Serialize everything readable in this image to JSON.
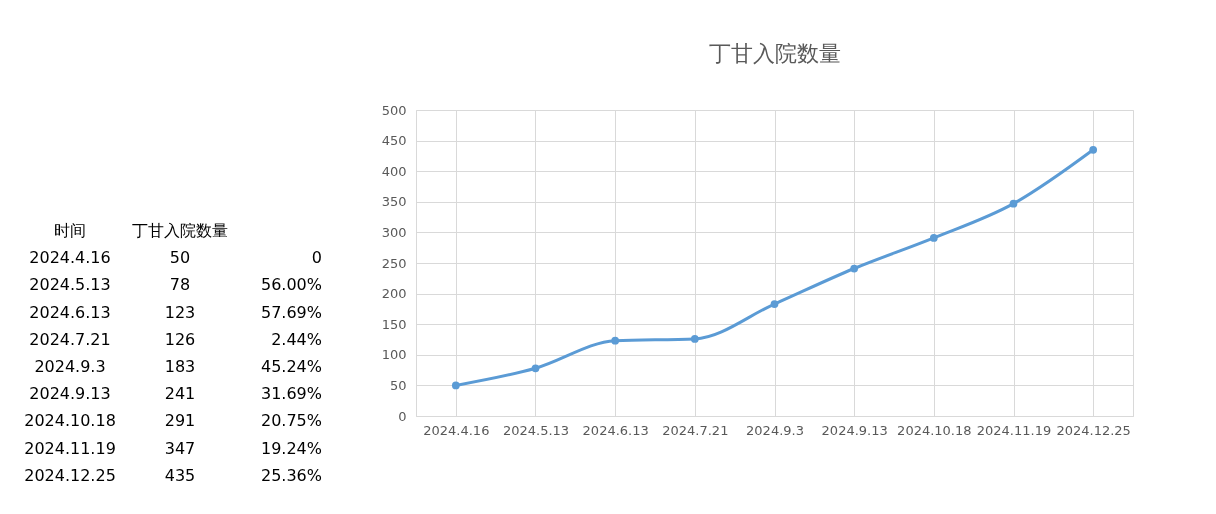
{
  "chart_data": {
    "type": "line",
    "title": "丁甘入院数量",
    "categories": [
      "2024.4.16",
      "2024.5.13",
      "2024.6.13",
      "2024.7.21",
      "2024.9.3",
      "2024.9.13",
      "2024.10.18",
      "2024.11.19",
      "2024.12.25"
    ],
    "values": [
      50,
      78,
      123,
      126,
      183,
      241,
      291,
      347,
      435
    ],
    "color": "#5b9bd5",
    "ylim": [
      0,
      500
    ],
    "yticks": [
      0,
      50,
      100,
      150,
      200,
      250,
      300,
      350,
      400,
      450,
      500
    ],
    "grid": true,
    "marker": "circle",
    "annotations": [
      "时间",
      "丁甘入院数量",
      "2024.4.16",
      "50",
      "0",
      "2024.5.13",
      "78",
      "56.00%",
      "2024.6.13",
      "123",
      "57.69%",
      "2024.7.21",
      "126",
      "2.44%",
      "2024.9.3",
      "183",
      "45.24%",
      "2024.9.13",
      "241",
      "31.69%",
      "2024.10.18",
      "291",
      "20.75%",
      "2024.11.19",
      "347",
      "19.24%",
      "2024.12.25",
      "435",
      "25.36%"
    ]
  }
}
